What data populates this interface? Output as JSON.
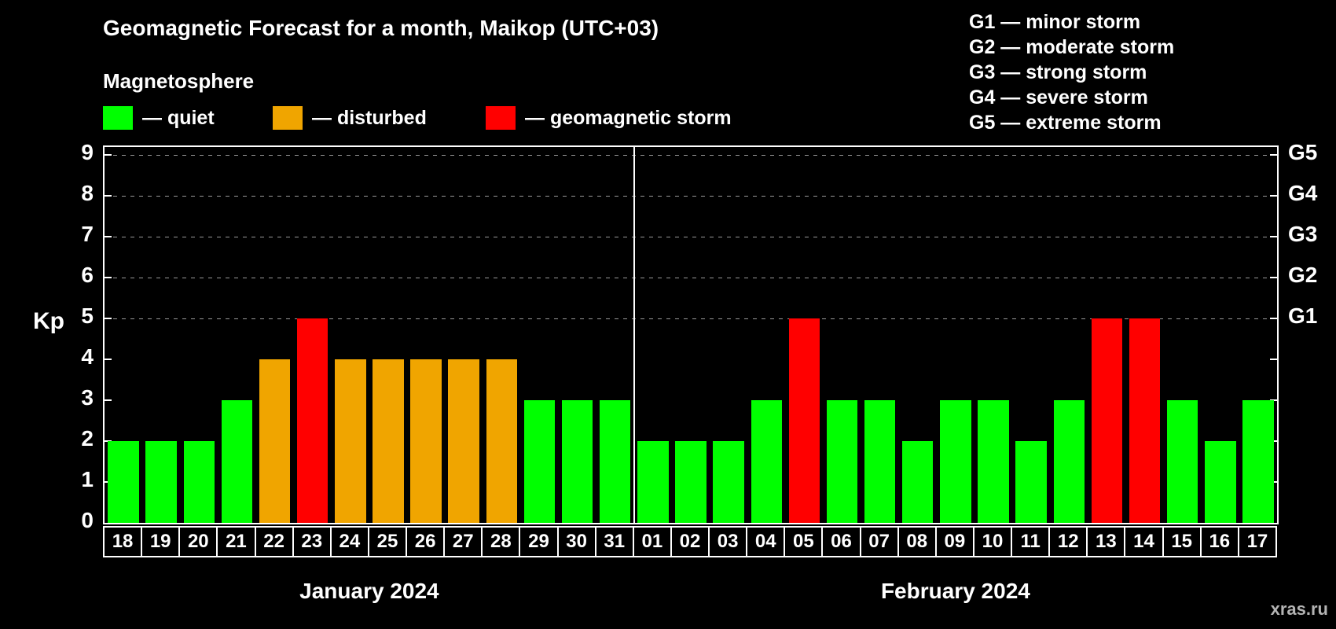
{
  "title": "Geomagnetic Forecast for a month, Maikop (UTC+03)",
  "subtitle": "Magnetosphere",
  "legend": {
    "items": [
      {
        "key": "quiet",
        "label": "— quiet",
        "color": "#00ff00"
      },
      {
        "key": "disturbed",
        "label": "— disturbed",
        "color": "#f0a500"
      },
      {
        "key": "storm",
        "label": "— geomagnetic storm",
        "color": "#ff0000"
      }
    ]
  },
  "g_legend": [
    "G1 — minor storm",
    "G2 — moderate storm",
    "G3 — strong storm",
    "G4 — severe storm",
    "G5 — extreme storm"
  ],
  "watermark": "xras.ru",
  "chart_data": {
    "type": "bar",
    "title": "Geomagnetic Forecast for a month, Maikop (UTC+03)",
    "ylabel": "Kp",
    "ylim": [
      0,
      9.2
    ],
    "yticks": [
      0,
      1,
      2,
      3,
      4,
      5,
      6,
      7,
      8,
      9
    ],
    "gridline_levels": [
      5,
      6,
      7,
      8,
      9
    ],
    "right_axis_labels": [
      {
        "label": "G1",
        "kp": 5
      },
      {
        "label": "G2",
        "kp": 6
      },
      {
        "label": "G3",
        "kp": 7
      },
      {
        "label": "G4",
        "kp": 8
      },
      {
        "label": "G5",
        "kp": 9
      }
    ],
    "colors": {
      "quiet": "#00ff00",
      "disturbed": "#f0a500",
      "storm": "#ff0000"
    },
    "months": [
      {
        "name": "January 2024",
        "days": [
          {
            "day": "18",
            "kp": 2,
            "status": "quiet"
          },
          {
            "day": "19",
            "kp": 2,
            "status": "quiet"
          },
          {
            "day": "20",
            "kp": 2,
            "status": "quiet"
          },
          {
            "day": "21",
            "kp": 3,
            "status": "quiet"
          },
          {
            "day": "22",
            "kp": 4,
            "status": "disturbed"
          },
          {
            "day": "23",
            "kp": 5,
            "status": "storm"
          },
          {
            "day": "24",
            "kp": 4,
            "status": "disturbed"
          },
          {
            "day": "25",
            "kp": 4,
            "status": "disturbed"
          },
          {
            "day": "26",
            "kp": 4,
            "status": "disturbed"
          },
          {
            "day": "27",
            "kp": 4,
            "status": "disturbed"
          },
          {
            "day": "28",
            "kp": 4,
            "status": "disturbed"
          },
          {
            "day": "29",
            "kp": 3,
            "status": "quiet"
          },
          {
            "day": "30",
            "kp": 3,
            "status": "quiet"
          },
          {
            "day": "31",
            "kp": 3,
            "status": "quiet"
          }
        ]
      },
      {
        "name": "February 2024",
        "days": [
          {
            "day": "01",
            "kp": 2,
            "status": "quiet"
          },
          {
            "day": "02",
            "kp": 2,
            "status": "quiet"
          },
          {
            "day": "03",
            "kp": 2,
            "status": "quiet"
          },
          {
            "day": "04",
            "kp": 3,
            "status": "quiet"
          },
          {
            "day": "05",
            "kp": 5,
            "status": "storm"
          },
          {
            "day": "06",
            "kp": 3,
            "status": "quiet"
          },
          {
            "day": "07",
            "kp": 3,
            "status": "quiet"
          },
          {
            "day": "08",
            "kp": 2,
            "status": "quiet"
          },
          {
            "day": "09",
            "kp": 3,
            "status": "quiet"
          },
          {
            "day": "10",
            "kp": 3,
            "status": "quiet"
          },
          {
            "day": "11",
            "kp": 2,
            "status": "quiet"
          },
          {
            "day": "12",
            "kp": 3,
            "status": "quiet"
          },
          {
            "day": "13",
            "kp": 5,
            "status": "storm"
          },
          {
            "day": "14",
            "kp": 5,
            "status": "storm"
          },
          {
            "day": "15",
            "kp": 3,
            "status": "quiet"
          },
          {
            "day": "16",
            "kp": 2,
            "status": "quiet"
          },
          {
            "day": "17",
            "kp": 3,
            "status": "quiet"
          }
        ]
      }
    ]
  }
}
